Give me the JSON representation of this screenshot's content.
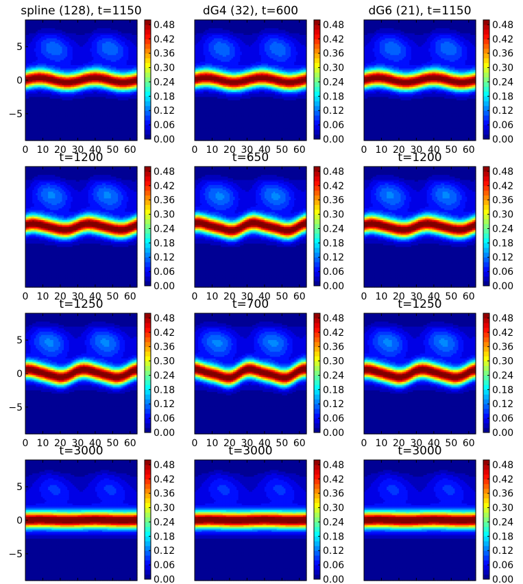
{
  "figure": {
    "colormap": "jet",
    "colorbar_ticks": [
      "0.00",
      "0.06",
      "0.12",
      "0.18",
      "0.24",
      "0.30",
      "0.36",
      "0.42",
      "0.48"
    ],
    "colorbar_range": [
      0.0,
      0.5
    ],
    "x_ticks": [
      "0",
      "10",
      "20",
      "30",
      "40",
      "50",
      "60"
    ],
    "y_ticks": [
      "5",
      "0",
      "−5"
    ],
    "colors": {
      "frame": "#000000",
      "background": "#ffffff"
    }
  },
  "chart_data": [
    {
      "type": "heatmap",
      "title": "spline (128), t=1150",
      "xlim": [
        0,
        64
      ],
      "ylim": [
        -9,
        9
      ],
      "show_yticks": true,
      "band_center": 0,
      "band_peak": 0.48,
      "wave_amp": 0.35,
      "wave_period": 32,
      "wave_phase": 0,
      "vortex_level": 0.09,
      "ripple": 0
    },
    {
      "type": "heatmap",
      "title": "dG4 (32), t=600",
      "xlim": [
        0,
        64
      ],
      "ylim": [
        -9,
        9
      ],
      "show_yticks": false,
      "band_center": 0,
      "band_peak": 0.48,
      "wave_amp": 0.35,
      "wave_period": 32,
      "wave_phase": 0.3,
      "vortex_level": 0.09,
      "ripple": 0
    },
    {
      "type": "heatmap",
      "title": "dG6 (21), t=1150",
      "xlim": [
        0,
        64
      ],
      "ylim": [
        -9,
        9
      ],
      "show_yticks": false,
      "band_center": 0,
      "band_peak": 0.48,
      "wave_amp": 0.35,
      "wave_period": 32,
      "wave_phase": 0,
      "vortex_level": 0.09,
      "ripple": 0
    },
    {
      "type": "heatmap",
      "title": "t=1200",
      "xlim": [
        0,
        64
      ],
      "ylim": [
        -9,
        9
      ],
      "show_yticks": false,
      "band_center": 0,
      "band_peak": 0.49,
      "wave_amp": 0.45,
      "wave_period": 32,
      "wave_phase": 0.5,
      "vortex_level": 0.1,
      "ripple": 0.2
    },
    {
      "type": "heatmap",
      "title": "t=650",
      "xlim": [
        0,
        64
      ],
      "ylim": [
        -9,
        9
      ],
      "show_yticks": false,
      "band_center": 0,
      "band_peak": 0.49,
      "wave_amp": 0.55,
      "wave_period": 32,
      "wave_phase": 0.9,
      "vortex_level": 0.1,
      "ripple": 0.4
    },
    {
      "type": "heatmap",
      "title": "t=1200",
      "xlim": [
        0,
        64
      ],
      "ylim": [
        -9,
        9
      ],
      "show_yticks": false,
      "band_center": 0,
      "band_peak": 0.49,
      "wave_amp": 0.45,
      "wave_period": 32,
      "wave_phase": 0.5,
      "vortex_level": 0.1,
      "ripple": 0.2
    },
    {
      "type": "heatmap",
      "title": "t=1250",
      "xlim": [
        0,
        64
      ],
      "ylim": [
        -9,
        9
      ],
      "show_yticks": true,
      "band_center": 0,
      "band_peak": 0.49,
      "wave_amp": 0.55,
      "wave_period": 32,
      "wave_phase": 1.0,
      "vortex_level": 0.1,
      "ripple": 0.3
    },
    {
      "type": "heatmap",
      "title": "t=700",
      "xlim": [
        0,
        64
      ],
      "ylim": [
        -9,
        9
      ],
      "show_yticks": false,
      "band_center": 0,
      "band_peak": 0.49,
      "wave_amp": 0.6,
      "wave_period": 32,
      "wave_phase": 1.3,
      "vortex_level": 0.1,
      "ripple": 0.5
    },
    {
      "type": "heatmap",
      "title": "t=1250",
      "xlim": [
        0,
        64
      ],
      "ylim": [
        -9,
        9
      ],
      "show_yticks": false,
      "band_center": 0,
      "band_peak": 0.49,
      "wave_amp": 0.55,
      "wave_period": 32,
      "wave_phase": 1.0,
      "vortex_level": 0.1,
      "ripple": 0.3
    },
    {
      "type": "heatmap",
      "title": "t=3000",
      "xlim": [
        0,
        64
      ],
      "ylim": [
        -9,
        9
      ],
      "show_yticks": true,
      "band_center": 0,
      "band_peak": 0.5,
      "wave_amp": 0.05,
      "wave_period": 32,
      "wave_phase": 0,
      "vortex_level": 0.06,
      "ripple": 0
    },
    {
      "type": "heatmap",
      "title": "t=3000",
      "xlim": [
        0,
        64
      ],
      "ylim": [
        -9,
        9
      ],
      "show_yticks": false,
      "band_center": 0,
      "band_peak": 0.5,
      "wave_amp": 0.05,
      "wave_period": 32,
      "wave_phase": 0,
      "vortex_level": 0.06,
      "ripple": 0
    },
    {
      "type": "heatmap",
      "title": "t=3000",
      "xlim": [
        0,
        64
      ],
      "ylim": [
        -9,
        9
      ],
      "show_yticks": false,
      "band_center": 0,
      "band_peak": 0.5,
      "wave_amp": 0.05,
      "wave_period": 32,
      "wave_phase": 0,
      "vortex_level": 0.06,
      "ripple": 0
    }
  ]
}
